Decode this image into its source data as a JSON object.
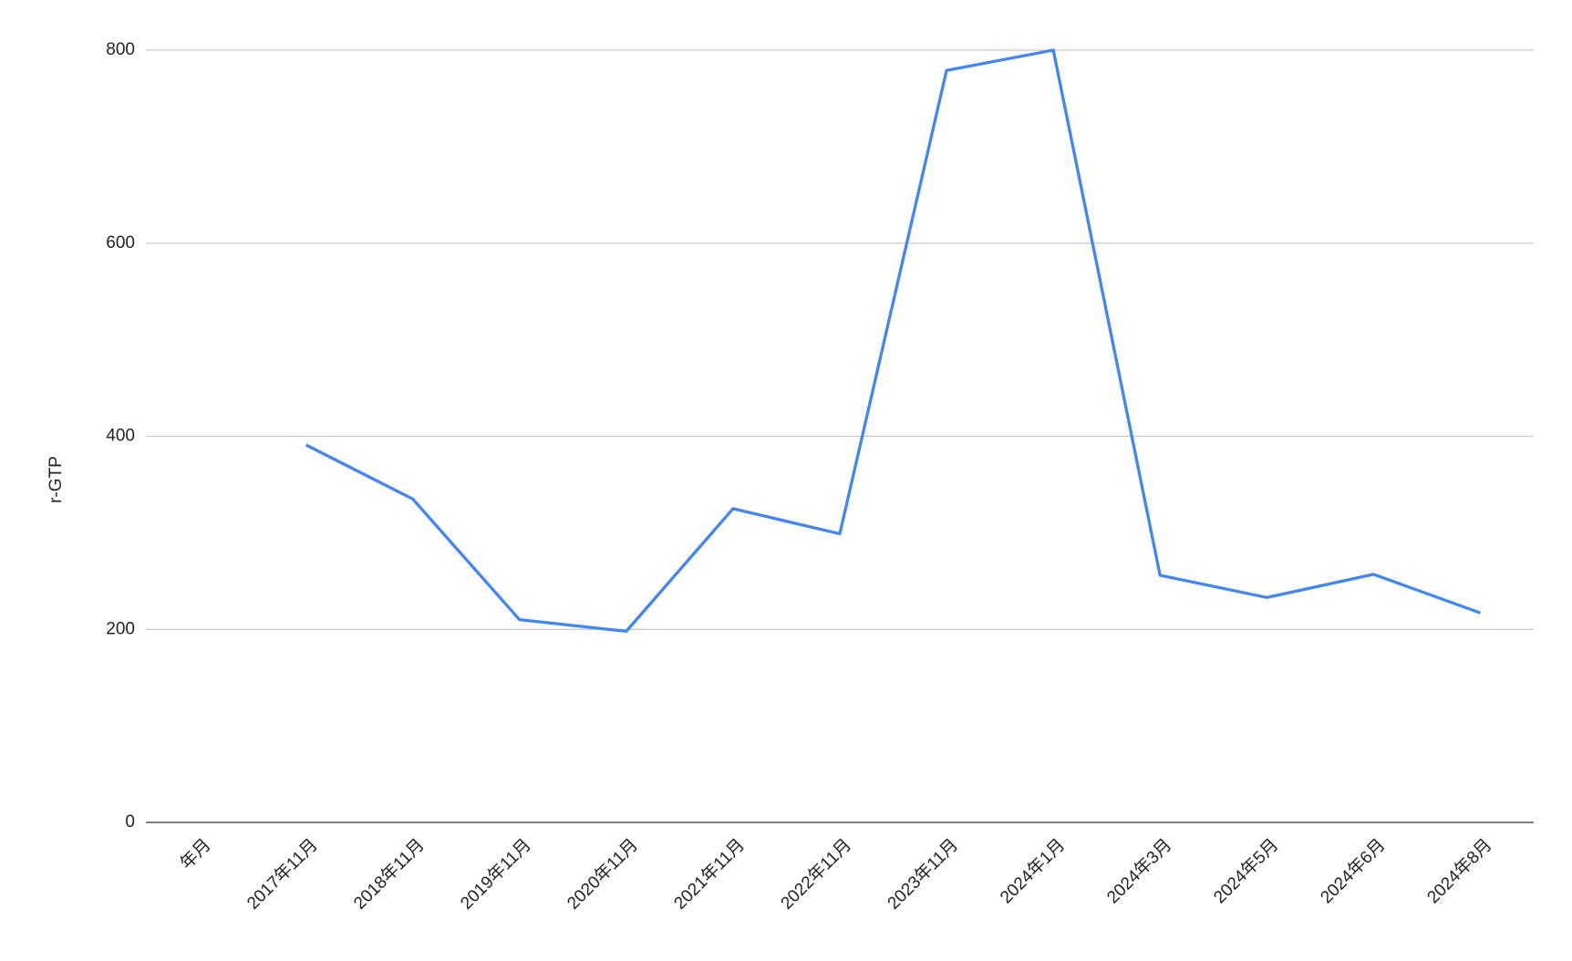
{
  "chart_data": {
    "type": "line",
    "y_label": "r-GTP",
    "categories": [
      "年月",
      "2017年11月",
      "2018年11月",
      "2019年11月",
      "2020年11月",
      "2021年11月",
      "2022年11月",
      "2023年11月",
      "2024年1月",
      "2024年3月",
      "2024年5月",
      "2024年6月",
      "2024年8月"
    ],
    "series": [
      {
        "name": "r-GTP",
        "color": "#4285f4",
        "values": [
          null,
          391,
          335,
          210,
          198,
          325,
          299,
          779,
          800,
          256,
          233,
          257,
          217
        ]
      }
    ],
    "ylim": [
      0,
      800
    ],
    "yticks": [
      0,
      200,
      400,
      600,
      800
    ],
    "grid": true
  }
}
